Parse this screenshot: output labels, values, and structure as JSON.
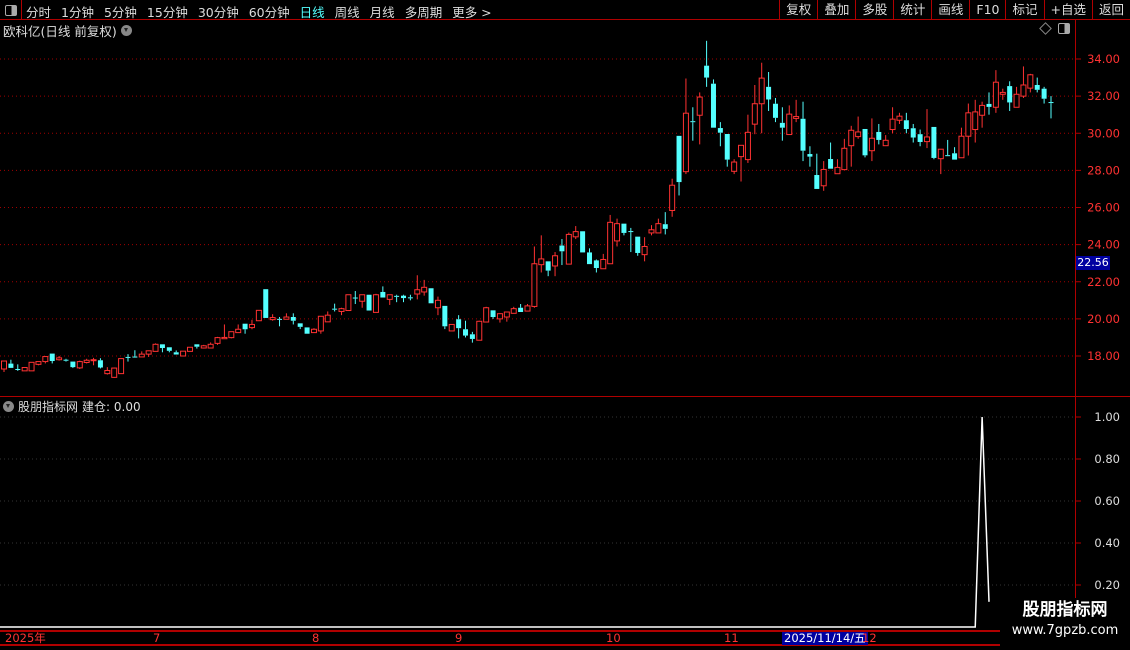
{
  "toolbar": {
    "tabs": [
      {
        "label": "分时"
      },
      {
        "label": "1分钟"
      },
      {
        "label": "5分钟"
      },
      {
        "label": "15分钟"
      },
      {
        "label": "30分钟"
      },
      {
        "label": "60分钟"
      },
      {
        "label": "日线",
        "active": true
      },
      {
        "label": "周线"
      },
      {
        "label": "月线"
      },
      {
        "label": "多周期"
      },
      {
        "label": "更多 >"
      }
    ],
    "buttons": [
      {
        "label": "复权"
      },
      {
        "label": "叠加"
      },
      {
        "label": "多股"
      },
      {
        "label": "统计"
      },
      {
        "label": "画线"
      },
      {
        "label": "F10"
      },
      {
        "label": "标记"
      },
      {
        "label": "+自选"
      },
      {
        "label": "返回"
      }
    ]
  },
  "price_pane": {
    "title": "欧科亿(日线 前复权)",
    "current_price": "22.56"
  },
  "indicator_pane": {
    "name": "股朋指标网",
    "label": "建仓: 0.00"
  },
  "date_axis": {
    "labels": [
      "2025年",
      "7",
      "8",
      "9",
      "10",
      "11",
      "12"
    ],
    "cursor_date": "2025/11/14/五"
  },
  "watermark": {
    "line1": "股朋指标网",
    "line2": "www.7gpzb.com"
  },
  "colors": {
    "up": "#ff3232",
    "down": "#54ffff",
    "axis": "#b00000",
    "grid": "#a00000",
    "indicator": "#ffffff"
  },
  "chart_data": [
    {
      "type": "candlestick",
      "ylim": [
        16.5,
        35.5
      ],
      "y_ticks": [
        "34.00",
        "32.00",
        "30.00",
        "28.00",
        "26.00",
        "24.00",
        "22.00",
        "20.00",
        "18.00"
      ],
      "candle_fields": [
        "open",
        "close",
        "high",
        "low"
      ],
      "candles": [
        [
          17.3,
          17.73,
          17.73,
          17.14
        ],
        [
          17.59,
          17.36,
          17.8,
          17.36
        ],
        [
          17.3,
          17.25,
          17.55,
          17.2
        ],
        [
          17.2,
          17.38,
          17.38,
          17.2
        ],
        [
          17.2,
          17.66,
          17.66,
          17.2
        ],
        [
          17.55,
          17.7,
          17.7,
          17.5
        ],
        [
          17.7,
          17.97,
          17.97,
          17.6
        ],
        [
          18.13,
          17.73,
          18.13,
          17.6
        ],
        [
          17.8,
          17.9,
          18.0,
          17.75
        ],
        [
          17.8,
          17.75,
          17.85,
          17.7
        ],
        [
          17.7,
          17.4,
          17.7,
          17.35
        ],
        [
          17.36,
          17.7,
          17.75,
          17.3
        ],
        [
          17.65,
          17.77,
          17.85,
          17.6
        ],
        [
          17.8,
          17.8,
          17.9,
          17.5
        ],
        [
          17.77,
          17.38,
          17.88,
          17.33
        ],
        [
          17.05,
          17.22,
          17.4,
          17.0
        ],
        [
          16.85,
          17.35,
          17.38,
          16.83
        ],
        [
          17.05,
          17.86,
          17.88,
          17.05
        ],
        [
          17.95,
          17.93,
          18.1,
          17.7
        ],
        [
          17.97,
          17.95,
          18.31,
          17.95
        ],
        [
          17.95,
          18.1,
          18.25,
          17.95
        ],
        [
          18.1,
          18.28,
          18.3,
          17.95
        ],
        [
          18.25,
          18.63,
          18.68,
          18.25
        ],
        [
          18.63,
          18.43,
          18.63,
          18.2
        ],
        [
          18.47,
          18.28,
          18.47,
          18.2
        ],
        [
          18.2,
          18.08,
          18.3,
          18.08
        ],
        [
          18.0,
          18.26,
          18.26,
          18.0
        ],
        [
          18.25,
          18.47,
          18.47,
          18.25
        ],
        [
          18.63,
          18.5,
          18.63,
          18.4
        ],
        [
          18.43,
          18.55,
          18.6,
          18.4
        ],
        [
          18.43,
          18.63,
          18.73,
          18.43
        ],
        [
          18.68,
          18.99,
          19.03,
          18.6
        ],
        [
          18.93,
          19.0,
          19.7,
          18.92
        ],
        [
          18.99,
          19.31,
          19.31,
          18.95
        ],
        [
          19.26,
          19.44,
          19.7,
          19.26
        ],
        [
          19.74,
          19.44,
          19.74,
          19.2
        ],
        [
          19.53,
          19.7,
          19.95,
          19.44
        ],
        [
          19.9,
          20.46,
          20.46,
          19.9
        ],
        [
          21.6,
          20.05,
          21.6,
          20.05
        ],
        [
          19.96,
          20.07,
          20.25,
          19.9
        ],
        [
          20.0,
          19.97,
          20.1,
          19.6
        ],
        [
          19.98,
          20.1,
          20.3,
          19.98
        ],
        [
          20.1,
          19.9,
          20.3,
          19.7
        ],
        [
          19.76,
          19.57,
          19.76,
          19.45
        ],
        [
          19.54,
          19.2,
          19.54,
          19.2
        ],
        [
          19.26,
          19.44,
          19.5,
          19.26
        ],
        [
          19.35,
          20.14,
          20.14,
          19.2
        ],
        [
          19.84,
          20.2,
          20.4,
          19.84
        ],
        [
          20.55,
          20.5,
          20.82,
          20.4
        ],
        [
          20.4,
          20.55,
          20.6,
          20.2
        ],
        [
          20.45,
          21.3,
          21.3,
          20.45
        ],
        [
          21.15,
          21.1,
          21.5,
          20.8
        ],
        [
          20.95,
          21.3,
          21.3,
          20.6
        ],
        [
          21.3,
          20.45,
          21.3,
          20.45
        ],
        [
          20.35,
          21.3,
          21.35,
          20.35
        ],
        [
          21.45,
          21.15,
          21.75,
          21.15
        ],
        [
          21.05,
          21.3,
          21.3,
          20.75
        ],
        [
          21.24,
          21.2,
          21.3,
          20.9
        ],
        [
          21.25,
          21.12,
          21.3,
          20.9
        ],
        [
          21.16,
          21.14,
          21.3,
          21.0
        ],
        [
          21.34,
          21.57,
          22.35,
          21.05
        ],
        [
          21.45,
          21.7,
          22.1,
          21.25
        ],
        [
          21.65,
          20.84,
          21.65,
          20.84
        ],
        [
          20.6,
          21.0,
          21.2,
          20.2
        ],
        [
          20.7,
          19.6,
          20.7,
          19.45
        ],
        [
          19.35,
          19.7,
          19.7,
          19.35
        ],
        [
          19.98,
          19.5,
          20.2,
          18.95
        ],
        [
          19.44,
          19.1,
          19.9,
          19.0
        ],
        [
          19.17,
          18.92,
          19.3,
          18.72
        ],
        [
          18.85,
          19.87,
          19.9,
          18.85
        ],
        [
          19.83,
          20.6,
          20.65,
          19.83
        ],
        [
          20.46,
          20.1,
          20.46,
          20.0
        ],
        [
          20.0,
          20.28,
          20.3,
          19.8
        ],
        [
          20.1,
          20.37,
          20.37,
          19.85
        ],
        [
          20.3,
          20.55,
          20.65,
          20.3
        ],
        [
          20.6,
          20.37,
          20.8,
          20.37
        ],
        [
          20.42,
          20.7,
          20.8,
          20.42
        ],
        [
          20.67,
          22.97,
          23.9,
          20.6
        ],
        [
          22.92,
          23.23,
          24.5,
          22.5
        ],
        [
          23.1,
          22.6,
          23.1,
          22.3
        ],
        [
          22.85,
          23.4,
          23.6,
          22.3
        ],
        [
          23.95,
          23.64,
          24.3,
          22.9
        ],
        [
          22.95,
          24.55,
          24.65,
          22.95
        ],
        [
          24.42,
          24.7,
          25.0,
          24.3
        ],
        [
          24.72,
          23.58,
          24.72,
          23.58
        ],
        [
          23.58,
          22.95,
          23.8,
          22.95
        ],
        [
          23.15,
          22.74,
          23.2,
          22.5
        ],
        [
          22.7,
          23.2,
          23.5,
          22.7
        ],
        [
          22.97,
          25.2,
          25.6,
          22.97
        ],
        [
          24.2,
          25.13,
          25.4,
          23.9
        ],
        [
          25.13,
          24.63,
          25.13,
          24.5
        ],
        [
          24.73,
          24.7,
          24.9,
          23.6
        ],
        [
          24.43,
          23.55,
          24.43,
          23.4
        ],
        [
          23.46,
          23.9,
          24.4,
          23.1
        ],
        [
          24.63,
          24.8,
          25.05,
          24.5
        ],
        [
          24.63,
          25.13,
          25.4,
          24.63
        ],
        [
          25.1,
          24.85,
          25.75,
          24.55
        ],
        [
          25.84,
          27.2,
          27.55,
          25.5
        ],
        [
          29.86,
          27.37,
          29.86,
          26.65
        ],
        [
          27.93,
          31.08,
          32.95,
          27.8
        ],
        [
          30.65,
          30.62,
          31.4,
          29.6
        ],
        [
          30.97,
          31.95,
          32.2,
          29.4
        ],
        [
          33.64,
          33.0,
          34.98,
          32.5
        ],
        [
          32.67,
          30.3,
          32.9,
          30.3
        ],
        [
          30.28,
          30.03,
          30.6,
          29.3
        ],
        [
          29.96,
          28.58,
          29.96,
          28.2
        ],
        [
          27.95,
          28.45,
          28.6,
          27.8
        ],
        [
          28.74,
          29.35,
          29.35,
          27.4
        ],
        [
          28.58,
          30.05,
          31.0,
          28.4
        ],
        [
          30.49,
          31.59,
          32.6,
          29.95
        ],
        [
          31.59,
          32.97,
          33.8,
          30.0
        ],
        [
          32.5,
          31.82,
          33.3,
          31.2
        ],
        [
          31.59,
          30.83,
          31.9,
          30.6
        ],
        [
          30.56,
          30.3,
          31.4,
          29.6
        ],
        [
          29.93,
          31.03,
          31.5,
          29.93
        ],
        [
          30.8,
          30.9,
          31.8,
          30.6
        ],
        [
          30.78,
          29.06,
          31.7,
          28.5
        ],
        [
          28.88,
          28.74,
          29.3,
          28.2
        ],
        [
          27.75,
          27.0,
          28.9,
          27.0
        ],
        [
          27.17,
          28.05,
          28.5,
          26.9
        ],
        [
          28.61,
          28.09,
          29.5,
          28.09
        ],
        [
          27.82,
          28.16,
          28.6,
          27.82
        ],
        [
          28.04,
          29.19,
          29.7,
          28.04
        ],
        [
          29.33,
          30.16,
          30.4,
          28.2
        ],
        [
          29.82,
          30.07,
          30.9,
          29.7
        ],
        [
          30.23,
          28.81,
          30.23,
          28.7
        ],
        [
          29.06,
          29.73,
          30.8,
          28.5
        ],
        [
          30.07,
          29.64,
          30.5,
          29.4
        ],
        [
          29.33,
          29.62,
          29.9,
          29.33
        ],
        [
          30.2,
          30.76,
          31.4,
          30.0
        ],
        [
          30.7,
          30.92,
          31.1,
          30.5
        ],
        [
          30.7,
          30.23,
          31.1,
          30.0
        ],
        [
          30.27,
          29.77,
          30.5,
          29.5
        ],
        [
          29.95,
          29.53,
          30.2,
          29.3
        ],
        [
          29.55,
          29.8,
          31.3,
          29.2
        ],
        [
          30.34,
          28.67,
          30.34,
          28.6
        ],
        [
          28.63,
          29.14,
          29.14,
          27.8
        ],
        [
          28.82,
          28.8,
          29.64,
          28.77
        ],
        [
          28.92,
          28.58,
          29.25,
          28.58
        ],
        [
          28.68,
          29.84,
          30.3,
          28.68
        ],
        [
          29.84,
          31.1,
          31.6,
          28.8
        ],
        [
          30.2,
          31.15,
          31.8,
          29.5
        ],
        [
          30.97,
          31.5,
          31.7,
          30.3
        ],
        [
          31.58,
          31.42,
          32.2,
          31.0
        ],
        [
          31.4,
          32.75,
          33.4,
          31.1
        ],
        [
          32.1,
          32.2,
          32.4,
          31.8
        ],
        [
          32.54,
          31.66,
          32.8,
          31.2
        ],
        [
          31.4,
          32.1,
          32.5,
          31.4
        ],
        [
          32.0,
          32.6,
          33.6,
          31.9
        ],
        [
          32.43,
          33.15,
          33.2,
          32.2
        ],
        [
          32.6,
          32.34,
          33.0,
          32.2
        ],
        [
          32.4,
          31.86,
          32.5,
          31.6
        ],
        [
          31.68,
          31.66,
          32.0,
          30.8
        ]
      ]
    },
    {
      "type": "line",
      "series_name": "建仓",
      "ylim": [
        0,
        1.05
      ],
      "y_ticks": [
        "1.00",
        "0.80",
        "0.60",
        "0.40",
        "0.20"
      ],
      "spike_index": 142,
      "spike_value": 1.0,
      "baseline_value": 0.0
    }
  ]
}
